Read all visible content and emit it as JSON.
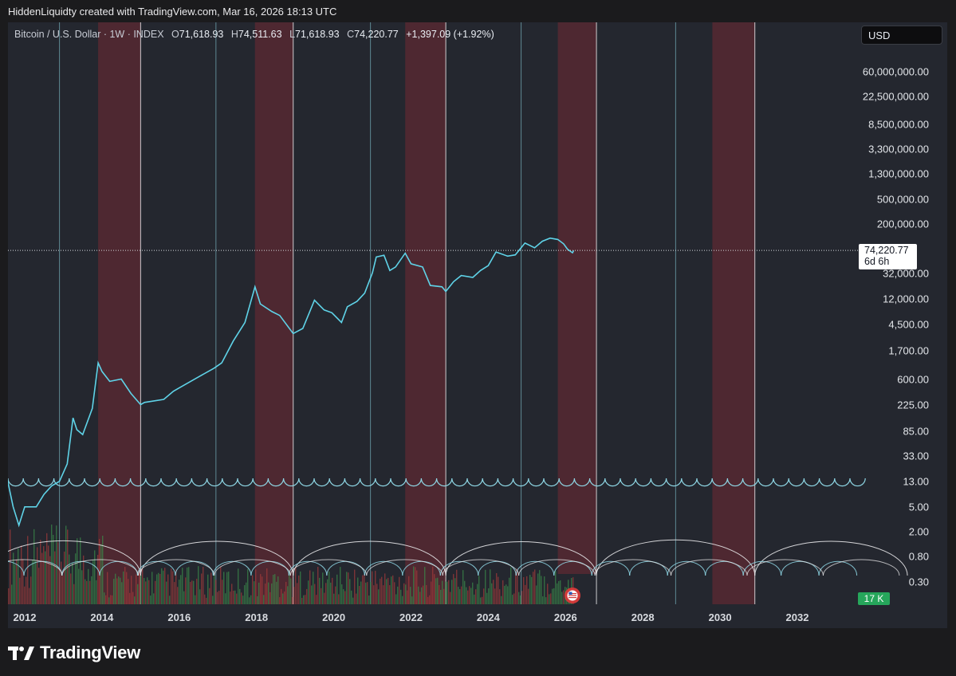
{
  "credit": "HiddenLiquidty created with TradingView.com, Mar 16, 2026 18:13 UTC",
  "header": {
    "symbol": "Bitcoin / U.S. Dollar · 1W · INDEX",
    "open_label": "O",
    "open": "71,618.93",
    "high_label": "H",
    "high": "74,511.63",
    "low_label": "L",
    "low": "71,618.93",
    "close_label": "C",
    "close": "74,220.77",
    "change": "+1,397.09 (+1.92%)"
  },
  "currency_button": "USD",
  "price_box": {
    "price": "74,220.77",
    "countdown": "6d 6h"
  },
  "volume_badge": "17 K",
  "footer": {
    "brand": "TradingView"
  },
  "icons": [
    "tradingview-logo-icon",
    "us-flag-event-icon"
  ],
  "colors": {
    "background": "#24272f",
    "price_line": "#5fd3e8",
    "red_band": "#5c2a33",
    "cycle_line_white": "#e8e8ea",
    "cycle_line_cyan": "#8fd8e6",
    "volume_up": "#3a8a4a",
    "volume_down": "#a33b3b"
  },
  "chart_data": {
    "type": "line",
    "scale": "log",
    "title": "",
    "xlabel": "",
    "ylabel": "",
    "ylim": [
      0.3,
      150000000
    ],
    "x_ticks": [
      "2012",
      "2014",
      "2016",
      "2018",
      "2020",
      "2022",
      "2024",
      "2026",
      "2028",
      "2030",
      "2032"
    ],
    "y_ticks": [
      "60,000,000.00",
      "22,500,000.00",
      "8,500,000.00",
      "3,300,000.00",
      "1,300,000.00",
      "500,000.00",
      "200,000.00",
      "32,000.00",
      "12,000.00",
      "4,500.00",
      "1,700.00",
      "600.00",
      "225.00",
      "85.00",
      "33.00",
      "13.00",
      "5.00",
      "2.00",
      "0.80",
      "0.30"
    ],
    "series": [
      {
        "points": [
          [
            2011.55,
            14
          ],
          [
            2011.7,
            5
          ],
          [
            2011.85,
            2.5
          ],
          [
            2012.0,
            5
          ],
          [
            2012.3,
            5
          ],
          [
            2012.5,
            8
          ],
          [
            2012.7,
            11
          ],
          [
            2012.9,
            13
          ],
          [
            2013.1,
            25
          ],
          [
            2013.25,
            140
          ],
          [
            2013.35,
            90
          ],
          [
            2013.5,
            75
          ],
          [
            2013.75,
            200
          ],
          [
            2013.9,
            1100
          ],
          [
            2014.0,
            800
          ],
          [
            2014.2,
            550
          ],
          [
            2014.5,
            600
          ],
          [
            2014.75,
            350
          ],
          [
            2015.0,
            230
          ],
          [
            2015.1,
            250
          ],
          [
            2015.6,
            280
          ],
          [
            2015.85,
            380
          ],
          [
            2016.0,
            430
          ],
          [
            2016.5,
            650
          ],
          [
            2016.9,
            900
          ],
          [
            2017.1,
            1100
          ],
          [
            2017.4,
            2500
          ],
          [
            2017.7,
            5000
          ],
          [
            2017.96,
            19000
          ],
          [
            2018.1,
            10000
          ],
          [
            2018.4,
            7500
          ],
          [
            2018.6,
            6500
          ],
          [
            2018.95,
            3300
          ],
          [
            2019.2,
            4000
          ],
          [
            2019.5,
            11500
          ],
          [
            2019.75,
            8000
          ],
          [
            2019.95,
            7200
          ],
          [
            2020.2,
            5000
          ],
          [
            2020.35,
            9000
          ],
          [
            2020.6,
            11000
          ],
          [
            2020.8,
            15000
          ],
          [
            2021.0,
            32000
          ],
          [
            2021.1,
            58000
          ],
          [
            2021.3,
            62000
          ],
          [
            2021.45,
            35000
          ],
          [
            2021.6,
            40000
          ],
          [
            2021.85,
            67000
          ],
          [
            2022.0,
            45000
          ],
          [
            2022.3,
            40000
          ],
          [
            2022.5,
            20000
          ],
          [
            2022.8,
            19000
          ],
          [
            2022.9,
            16000
          ],
          [
            2023.1,
            23000
          ],
          [
            2023.3,
            29000
          ],
          [
            2023.6,
            27000
          ],
          [
            2023.8,
            35000
          ],
          [
            2024.0,
            42000
          ],
          [
            2024.2,
            70000
          ],
          [
            2024.5,
            60000
          ],
          [
            2024.7,
            63000
          ],
          [
            2024.95,
            98000
          ],
          [
            2025.2,
            82000
          ],
          [
            2025.4,
            105000
          ],
          [
            2025.6,
            118000
          ],
          [
            2025.8,
            112000
          ],
          [
            2025.95,
            95000
          ],
          [
            2026.05,
            78000
          ],
          [
            2026.18,
            68000
          ],
          [
            2026.21,
            74220.77
          ]
        ]
      }
    ],
    "shaded_bands": [
      [
        2013.9,
        2015.0
      ],
      [
        2017.96,
        2018.95
      ],
      [
        2021.85,
        2022.9
      ],
      [
        2025.8,
        2026.8
      ],
      [
        2029.8,
        2030.9
      ]
    ],
    "cycle_lines_white": [
      2015.0,
      2018.95,
      2022.9,
      2026.8,
      2030.9
    ],
    "cycle_lines_cyan": [
      2012.9,
      2016.95,
      2020.95,
      2024.85,
      2028.85
    ]
  }
}
